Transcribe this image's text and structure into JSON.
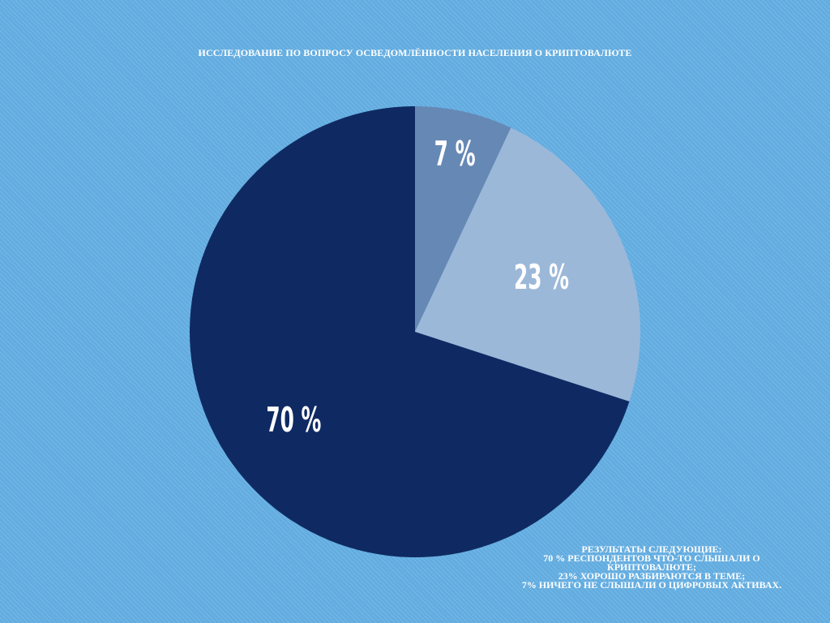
{
  "title": "ИССЛЕДОВАНИЕ ПО ВОПРОСУ ОСВЕДОМЛЁННОСТИ НАСЕЛЕНИЯ О КРИПТОВАЛЮТЕ",
  "chart_data": {
    "type": "pie",
    "title": "ИССЛЕДОВАНИЕ ПО ВОПРОСУ ОСВЕДОМЛЁННОСТИ НАСЕЛЕНИЯ О КРИПТОВАЛЮТЕ",
    "start_angle": "12 o'clock",
    "direction": "clockwise",
    "slices": [
      {
        "value": 7,
        "label": "7 %",
        "color": "#6688b5"
      },
      {
        "value": 23,
        "label": "23 %",
        "color": "#9cb8d8"
      },
      {
        "value": 70,
        "label": "70 %",
        "color": "#0f2a62"
      }
    ]
  },
  "notes": {
    "lines": [
      "РЕЗУЛЬТАТЫ СЛЕДУЮЩИЕ:",
      "70 % РЕСПОНДЕНТОВ ЧТО-ТО СЛЫШАЛИ О",
      "КРИПТОВАЛЮТЕ;",
      "23% ХОРОШО РАЗБИРАЮТСЯ В ТЕМЕ;",
      "7% НИЧЕГО НЕ СЛЫШАЛИ О ЦИФРОВЫХ АКТИВАХ."
    ]
  },
  "colors": {
    "background": "#62ace0",
    "text": "#ffffff"
  }
}
